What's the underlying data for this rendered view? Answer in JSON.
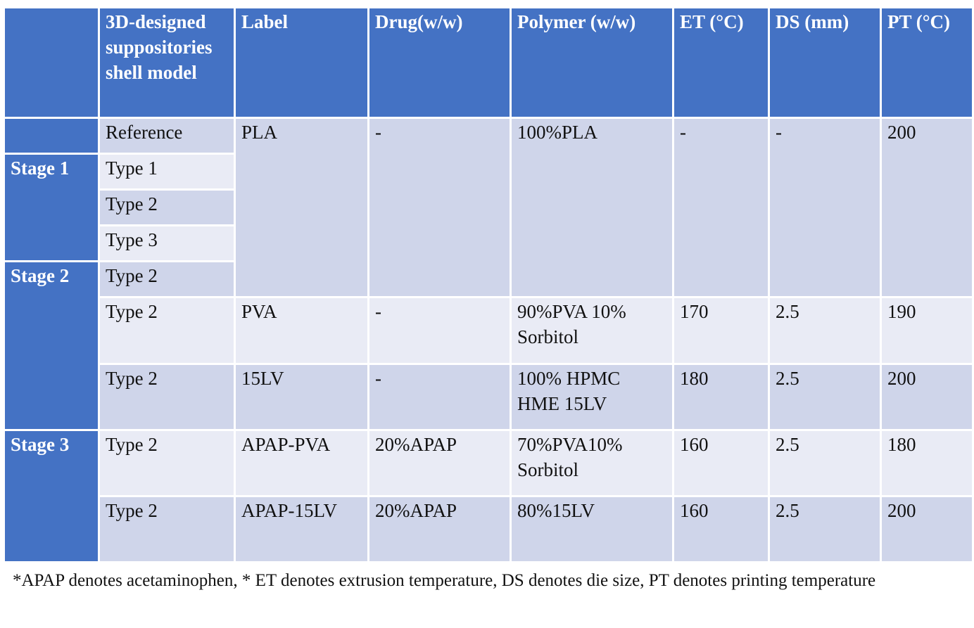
{
  "table": {
    "headers": [
      "",
      "3D-designed suppositories shell model",
      "Label",
      "Drug(w/w)",
      "Polymer (w/w)",
      "ET (°C)",
      "DS (mm)",
      "PT (°C)"
    ],
    "stages": [
      "Stage 1",
      "Stage 2",
      "Stage 3"
    ],
    "models": [
      "Reference",
      "Type 1",
      "Type 2",
      "Type 3",
      "Type 2",
      "Type 2",
      "Type 2",
      "Type 2",
      "Type 2"
    ],
    "groups": [
      {
        "label": "PLA",
        "drug": "-",
        "polymer": "100%PLA",
        "et": "-",
        "ds": "-",
        "pt": "200"
      },
      {
        "label": "PVA",
        "drug": "-",
        "polymer": "90%PVA 10% Sorbitol",
        "et": "170",
        "ds": "2.5",
        "pt": "190"
      },
      {
        "label": "15LV",
        "drug": "-",
        "polymer": "100% HPMC HME 15LV",
        "et": "180",
        "ds": "2.5",
        "pt": "200"
      },
      {
        "label": "APAP-PVA",
        "drug": "20%APAP",
        "polymer": "70%PVA10% Sorbitol",
        "et": "160",
        "ds": "2.5",
        "pt": "180"
      },
      {
        "label": "APAP-15LV",
        "drug": "20%APAP",
        "polymer": "80%15LV",
        "et": "160",
        "ds": "2.5",
        "pt": "200"
      }
    ]
  },
  "footnote": "*APAP denotes acetaminophen, * ET denotes extrusion temperature, DS denotes die size, PT denotes printing temperature",
  "colors": {
    "header": "#4472c4",
    "row_dark": "#cfd5ea",
    "row_light": "#e9ebf5",
    "text_light": "#ffffff"
  }
}
